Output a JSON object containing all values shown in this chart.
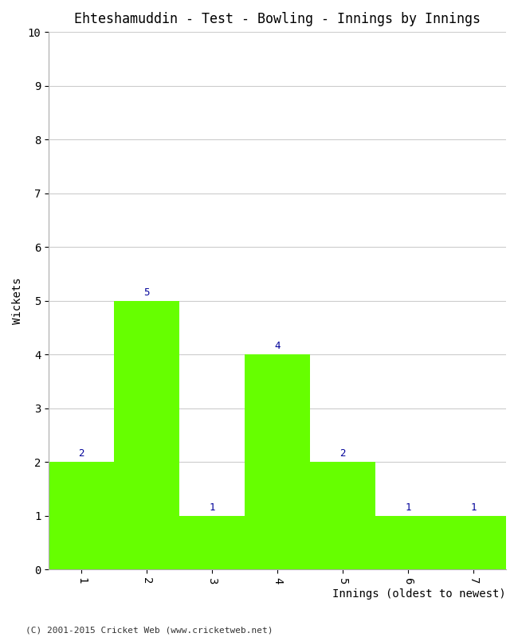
{
  "title": "Ehteshamuddin - Test - Bowling - Innings by Innings",
  "xlabel": "Innings (oldest to newest)",
  "ylabel": "Wickets",
  "categories": [
    "1",
    "2",
    "3",
    "4",
    "5",
    "6",
    "7"
  ],
  "values": [
    2,
    5,
    1,
    4,
    2,
    1,
    1
  ],
  "bar_color": "#66ff00",
  "label_color": "#000099",
  "ylim": [
    0,
    10
  ],
  "yticks": [
    0,
    1,
    2,
    3,
    4,
    5,
    6,
    7,
    8,
    9,
    10
  ],
  "background_color": "#ffffff",
  "grid_color": "#cccccc",
  "title_fontsize": 12,
  "axis_fontsize": 10,
  "label_fontsize": 9,
  "footer": "(C) 2001-2015 Cricket Web (www.cricketweb.net)"
}
